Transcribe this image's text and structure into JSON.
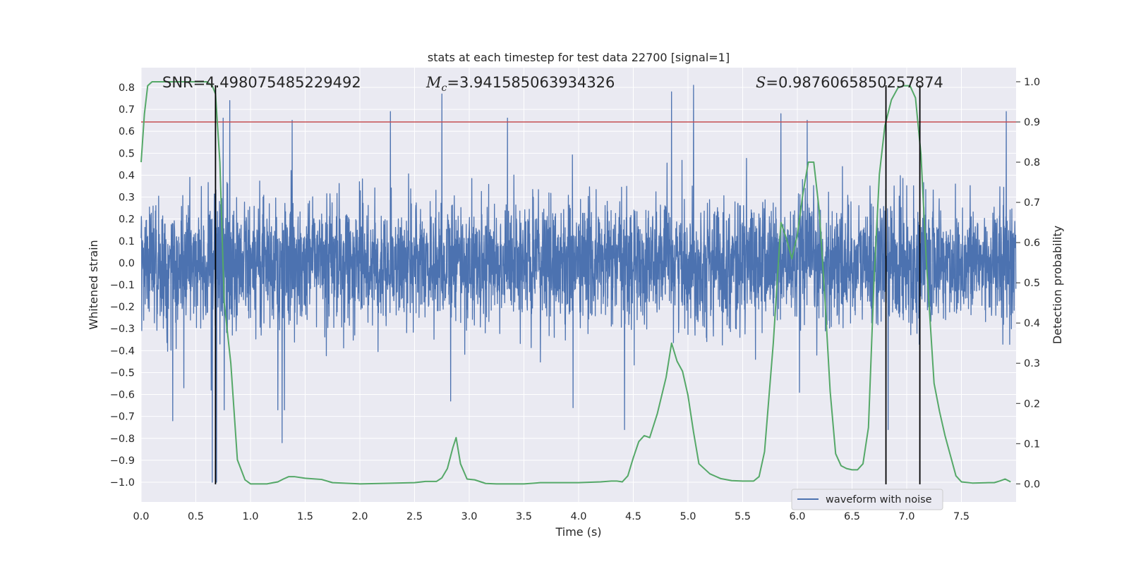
{
  "chart_data": {
    "type": "line",
    "title": "stats at each timestep for test data 22700 [signal=1]",
    "xlabel": "Time (s)",
    "ylabel_left": "Whitened strain",
    "ylabel_right": "Detection probability",
    "xlim": [
      0.0,
      8.0
    ],
    "ylim_left": [
      -1.09,
      0.89
    ],
    "ylim_right": [
      -0.045,
      1.035
    ],
    "x_ticks": [
      0.0,
      0.5,
      1.0,
      1.5,
      2.0,
      2.5,
      3.0,
      3.5,
      4.0,
      4.5,
      5.0,
      5.5,
      6.0,
      6.5,
      7.0,
      7.5
    ],
    "x_tick_labels": [
      "0.0",
      "0.5",
      "1.0",
      "1.5",
      "2.0",
      "2.5",
      "3.0",
      "3.5",
      "4.0",
      "4.5",
      "5.0",
      "5.5",
      "6.0",
      "6.5",
      "7.0",
      "7.5"
    ],
    "y_left_ticks": [
      0.8,
      0.7,
      0.6,
      0.5,
      0.4,
      0.3,
      0.2,
      0.1,
      0.0,
      -0.1,
      -0.2,
      -0.3,
      -0.4,
      -0.5,
      -0.6,
      -0.7,
      -0.8,
      -0.9,
      -1.0
    ],
    "y_left_tick_labels": [
      "0.8",
      "0.7",
      "0.6",
      "0.5",
      "0.4",
      "0.3",
      "0.2",
      "0.1",
      "0.0",
      "−0.1",
      "−0.2",
      "−0.3",
      "−0.4",
      "−0.5",
      "−0.6",
      "−0.7",
      "−0.8",
      "−0.9",
      "−1.0"
    ],
    "y_right_ticks": [
      1.0,
      0.9,
      0.8,
      0.7,
      0.6,
      0.5,
      0.4,
      0.3,
      0.2,
      0.1,
      0.0
    ],
    "y_right_tick_labels": [
      "1.0",
      "0.9",
      "0.8",
      "0.7",
      "0.6",
      "0.5",
      "0.4",
      "0.3",
      "0.2",
      "0.1",
      "0.0"
    ],
    "annotations": {
      "snr": "SNR=4.498075485229492",
      "mc_symbol": "M",
      "mc_sub": "c",
      "mc_value": "=3.941585063934326",
      "s_symbol": "S",
      "s_value": "=0.9876065850257874"
    },
    "threshold_right": 0.9,
    "vertical_lines_x": [
      0.68,
      6.81,
      7.12
    ],
    "waveform": {
      "name": "waveform with noise",
      "color": "#4c72b0",
      "sample_rate_hz": 512,
      "typical_amplitude": 0.28,
      "spike_peaks": [
        {
          "t": 0.29,
          "v": -0.72
        },
        {
          "t": 0.64,
          "v": -0.58
        },
        {
          "t": 0.65,
          "v": -1.0
        },
        {
          "t": 0.69,
          "v": -1.0
        },
        {
          "t": 0.72,
          "v": -0.37
        },
        {
          "t": 0.75,
          "v": 0.66
        },
        {
          "t": 0.76,
          "v": -0.67
        },
        {
          "t": 0.81,
          "v": 0.74
        },
        {
          "t": 1.25,
          "v": -0.67
        },
        {
          "t": 1.29,
          "v": -0.82
        },
        {
          "t": 1.31,
          "v": -0.67
        },
        {
          "t": 1.38,
          "v": 0.65
        },
        {
          "t": 2.28,
          "v": 0.69
        },
        {
          "t": 2.75,
          "v": 0.77
        },
        {
          "t": 2.83,
          "v": -0.63
        },
        {
          "t": 3.35,
          "v": 0.66
        },
        {
          "t": 3.95,
          "v": -0.66
        },
        {
          "t": 4.42,
          "v": -0.76
        },
        {
          "t": 4.85,
          "v": 0.78
        },
        {
          "t": 5.05,
          "v": 0.81
        },
        {
          "t": 5.85,
          "v": 0.68
        },
        {
          "t": 6.02,
          "v": -0.59
        },
        {
          "t": 6.09,
          "v": 0.65
        },
        {
          "t": 6.83,
          "v": -0.76
        },
        {
          "t": 7.91,
          "v": 0.69
        }
      ]
    },
    "detection_probability": {
      "color": "#55a868",
      "t": [
        0.0,
        0.03,
        0.06,
        0.1,
        0.15,
        0.3,
        0.5,
        0.6,
        0.65,
        0.68,
        0.72,
        0.76,
        0.82,
        0.88,
        0.95,
        1.0,
        1.15,
        1.25,
        1.3,
        1.35,
        1.4,
        1.5,
        1.65,
        1.75,
        2.0,
        2.5,
        2.6,
        2.7,
        2.75,
        2.8,
        2.85,
        2.88,
        2.92,
        2.98,
        3.05,
        3.15,
        3.25,
        3.5,
        3.65,
        4.0,
        4.2,
        4.3,
        4.35,
        4.4,
        4.45,
        4.5,
        4.55,
        4.6,
        4.65,
        4.72,
        4.8,
        4.85,
        4.9,
        4.95,
        5.0,
        5.05,
        5.1,
        5.2,
        5.3,
        5.4,
        5.5,
        5.6,
        5.65,
        5.7,
        5.78,
        5.85,
        5.9,
        5.95,
        6.0,
        6.05,
        6.1,
        6.15,
        6.2,
        6.25,
        6.3,
        6.35,
        6.4,
        6.45,
        6.5,
        6.55,
        6.6,
        6.65,
        6.7,
        6.75,
        6.8,
        6.86,
        6.92,
        6.97,
        7.03,
        7.08,
        7.13,
        7.18,
        7.25,
        7.3,
        7.35,
        7.4,
        7.45,
        7.5,
        7.6,
        7.75,
        7.8,
        7.85,
        7.9,
        7.95
      ],
      "p": [
        0.8,
        0.92,
        0.99,
        1.0,
        1.0,
        1.0,
        1.0,
        1.0,
        0.99,
        0.97,
        0.8,
        0.45,
        0.3,
        0.06,
        0.01,
        0.0,
        0.0,
        0.005,
        0.012,
        0.018,
        0.018,
        0.014,
        0.011,
        0.003,
        0.0,
        0.003,
        0.006,
        0.006,
        0.015,
        0.038,
        0.09,
        0.115,
        0.05,
        0.012,
        0.01,
        0.001,
        0.0,
        0.0,
        0.003,
        0.003,
        0.005,
        0.007,
        0.007,
        0.005,
        0.02,
        0.065,
        0.105,
        0.12,
        0.115,
        0.175,
        0.265,
        0.35,
        0.305,
        0.28,
        0.22,
        0.13,
        0.05,
        0.025,
        0.013,
        0.008,
        0.007,
        0.007,
        0.018,
        0.08,
        0.35,
        0.65,
        0.61,
        0.56,
        0.62,
        0.72,
        0.8,
        0.8,
        0.68,
        0.47,
        0.23,
        0.075,
        0.045,
        0.038,
        0.035,
        0.035,
        0.05,
        0.14,
        0.5,
        0.77,
        0.89,
        0.955,
        0.985,
        0.99,
        0.99,
        0.96,
        0.82,
        0.55,
        0.25,
        0.18,
        0.12,
        0.07,
        0.02,
        0.005,
        0.002,
        0.003,
        0.003,
        0.007,
        0.012,
        0.005
      ]
    }
  }
}
